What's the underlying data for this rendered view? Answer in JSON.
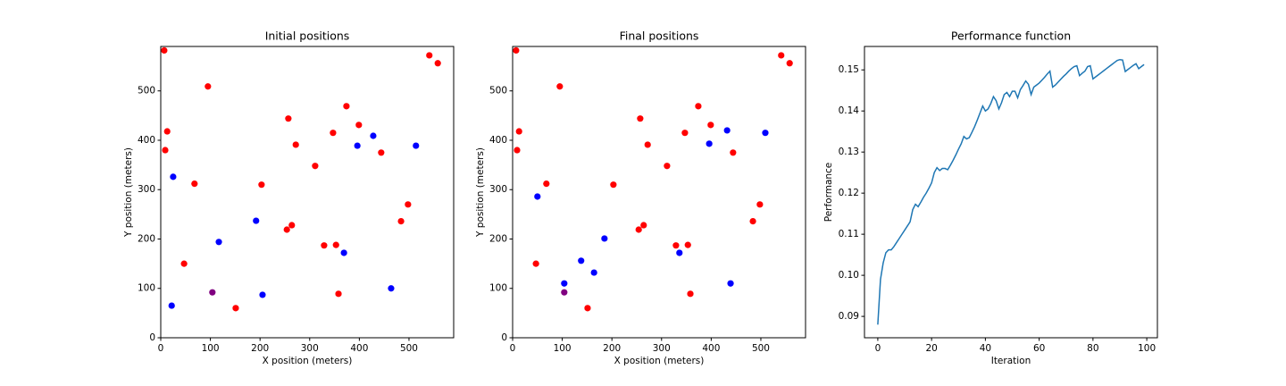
{
  "chart_data": [
    {
      "type": "scatter",
      "title": "Initial positions",
      "xlabel": "X position (meters)",
      "ylabel": "Y position (meters)",
      "xlim": [
        0,
        590
      ],
      "ylim": [
        0,
        590
      ],
      "xticks": [
        0,
        100,
        200,
        300,
        400,
        500
      ],
      "yticks": [
        0,
        100,
        200,
        300,
        400,
        500
      ],
      "series": [
        {
          "color": "red",
          "x": [
            7,
            13,
            9,
            95,
            68,
            47,
            151,
            203,
            257,
            272,
            311,
            347,
            374,
            399,
            444,
            541,
            558,
            498,
            484,
            254,
            264,
            329,
            353,
            358
          ],
          "values": [
            582,
            418,
            380,
            509,
            312,
            150,
            60,
            310,
            444,
            391,
            348,
            415,
            469,
            431,
            375,
            572,
            556,
            270,
            236,
            219,
            228,
            187,
            188,
            89
          ]
        },
        {
          "color": "blue",
          "x": [
            25,
            22,
            117,
            192,
            205,
            369,
            396,
            428,
            464,
            514
          ],
          "values": [
            326,
            65,
            194,
            237,
            87,
            172,
            389,
            409,
            100,
            389
          ]
        },
        {
          "color": "purple",
          "x": [
            104
          ],
          "values": [
            92
          ]
        }
      ]
    },
    {
      "type": "scatter",
      "title": "Final positions",
      "xlabel": "X position (meters)",
      "ylabel": "Y position (meters)",
      "xlim": [
        0,
        590
      ],
      "ylim": [
        0,
        590
      ],
      "xticks": [
        0,
        100,
        200,
        300,
        400,
        500
      ],
      "yticks": [
        0,
        100,
        200,
        300,
        400,
        500
      ],
      "series": [
        {
          "color": "red",
          "x": [
            7,
            13,
            9,
            95,
            68,
            47,
            151,
            203,
            257,
            272,
            311,
            347,
            374,
            399,
            444,
            541,
            558,
            498,
            484,
            254,
            264,
            329,
            353,
            358
          ],
          "values": [
            582,
            418,
            380,
            509,
            312,
            150,
            60,
            310,
            444,
            391,
            348,
            415,
            469,
            431,
            375,
            572,
            556,
            270,
            236,
            219,
            228,
            187,
            188,
            89
          ]
        },
        {
          "color": "blue",
          "x": [
            50,
            104,
            138,
            164,
            185,
            336,
            396,
            432,
            439,
            509
          ],
          "values": [
            286,
            110,
            156,
            132,
            201,
            172,
            393,
            420,
            110,
            415
          ]
        },
        {
          "color": "purple",
          "x": [
            104
          ],
          "values": [
            92
          ]
        }
      ]
    },
    {
      "type": "line",
      "title": "Performance function",
      "xlabel": "Iteration",
      "ylabel": "Performance",
      "xlim": [
        -4.95,
        103.95
      ],
      "ylim": [
        0.0848,
        0.1557
      ],
      "xticks": [
        0,
        20,
        40,
        60,
        80,
        100
      ],
      "yticks": [
        0.09,
        {
          "value": 0.1,
          "label": "0.10"
        },
        0.11,
        0.12,
        0.13,
        0.14,
        0.15
      ],
      "series": [
        {
          "color": "#1f77b4",
          "x": [
            0,
            1,
            2,
            3,
            4,
            5,
            6,
            7,
            8,
            9,
            10,
            11,
            12,
            13,
            14,
            15,
            16,
            17,
            18,
            19,
            20,
            21,
            22,
            23,
            24,
            25,
            26,
            27,
            28,
            29,
            30,
            31,
            32,
            33,
            34,
            35,
            36,
            37,
            38,
            39,
            40,
            41,
            42,
            43,
            44,
            45,
            46,
            47,
            48,
            49,
            50,
            51,
            52,
            53,
            54,
            55,
            56,
            57,
            58,
            59,
            60,
            61,
            62,
            63,
            64,
            65,
            66,
            67,
            68,
            69,
            70,
            71,
            72,
            73,
            74,
            75,
            76,
            77,
            78,
            79,
            80,
            81,
            82,
            83,
            84,
            85,
            86,
            87,
            88,
            89,
            90,
            91,
            92,
            93,
            94,
            95,
            96,
            97,
            98,
            99
          ],
          "values": [
            0.088,
            0.099,
            0.103,
            0.1055,
            0.1062,
            0.1062,
            0.107,
            0.108,
            0.109,
            0.11,
            0.111,
            0.112,
            0.113,
            0.116,
            0.1173,
            0.1167,
            0.1178,
            0.119,
            0.12,
            0.1212,
            0.1225,
            0.125,
            0.1262,
            0.1255,
            0.126,
            0.126,
            0.1257,
            0.1268,
            0.128,
            0.1293,
            0.1307,
            0.132,
            0.1338,
            0.1332,
            0.1335,
            0.1348,
            0.1362,
            0.1378,
            0.1395,
            0.1412,
            0.14,
            0.1405,
            0.1418,
            0.1435,
            0.1425,
            0.1405,
            0.142,
            0.144,
            0.1445,
            0.1435,
            0.1448,
            0.1448,
            0.1432,
            0.1452,
            0.1462,
            0.1473,
            0.1465,
            0.144,
            0.1458,
            0.1463,
            0.1468,
            0.1475,
            0.1482,
            0.149,
            0.1497,
            0.1458,
            0.1463,
            0.147,
            0.1477,
            0.1484,
            0.149,
            0.1497,
            0.1503,
            0.1508,
            0.151,
            0.1486,
            0.1492,
            0.1497,
            0.1508,
            0.151,
            0.1478,
            0.1483,
            0.1488,
            0.1493,
            0.1498,
            0.1503,
            0.1508,
            0.1513,
            0.1518,
            0.1523,
            0.1525,
            0.1524,
            0.1496,
            0.1501,
            0.1506,
            0.1511,
            0.1515,
            0.1503,
            0.1508,
            0.1513
          ]
        }
      ]
    }
  ]
}
